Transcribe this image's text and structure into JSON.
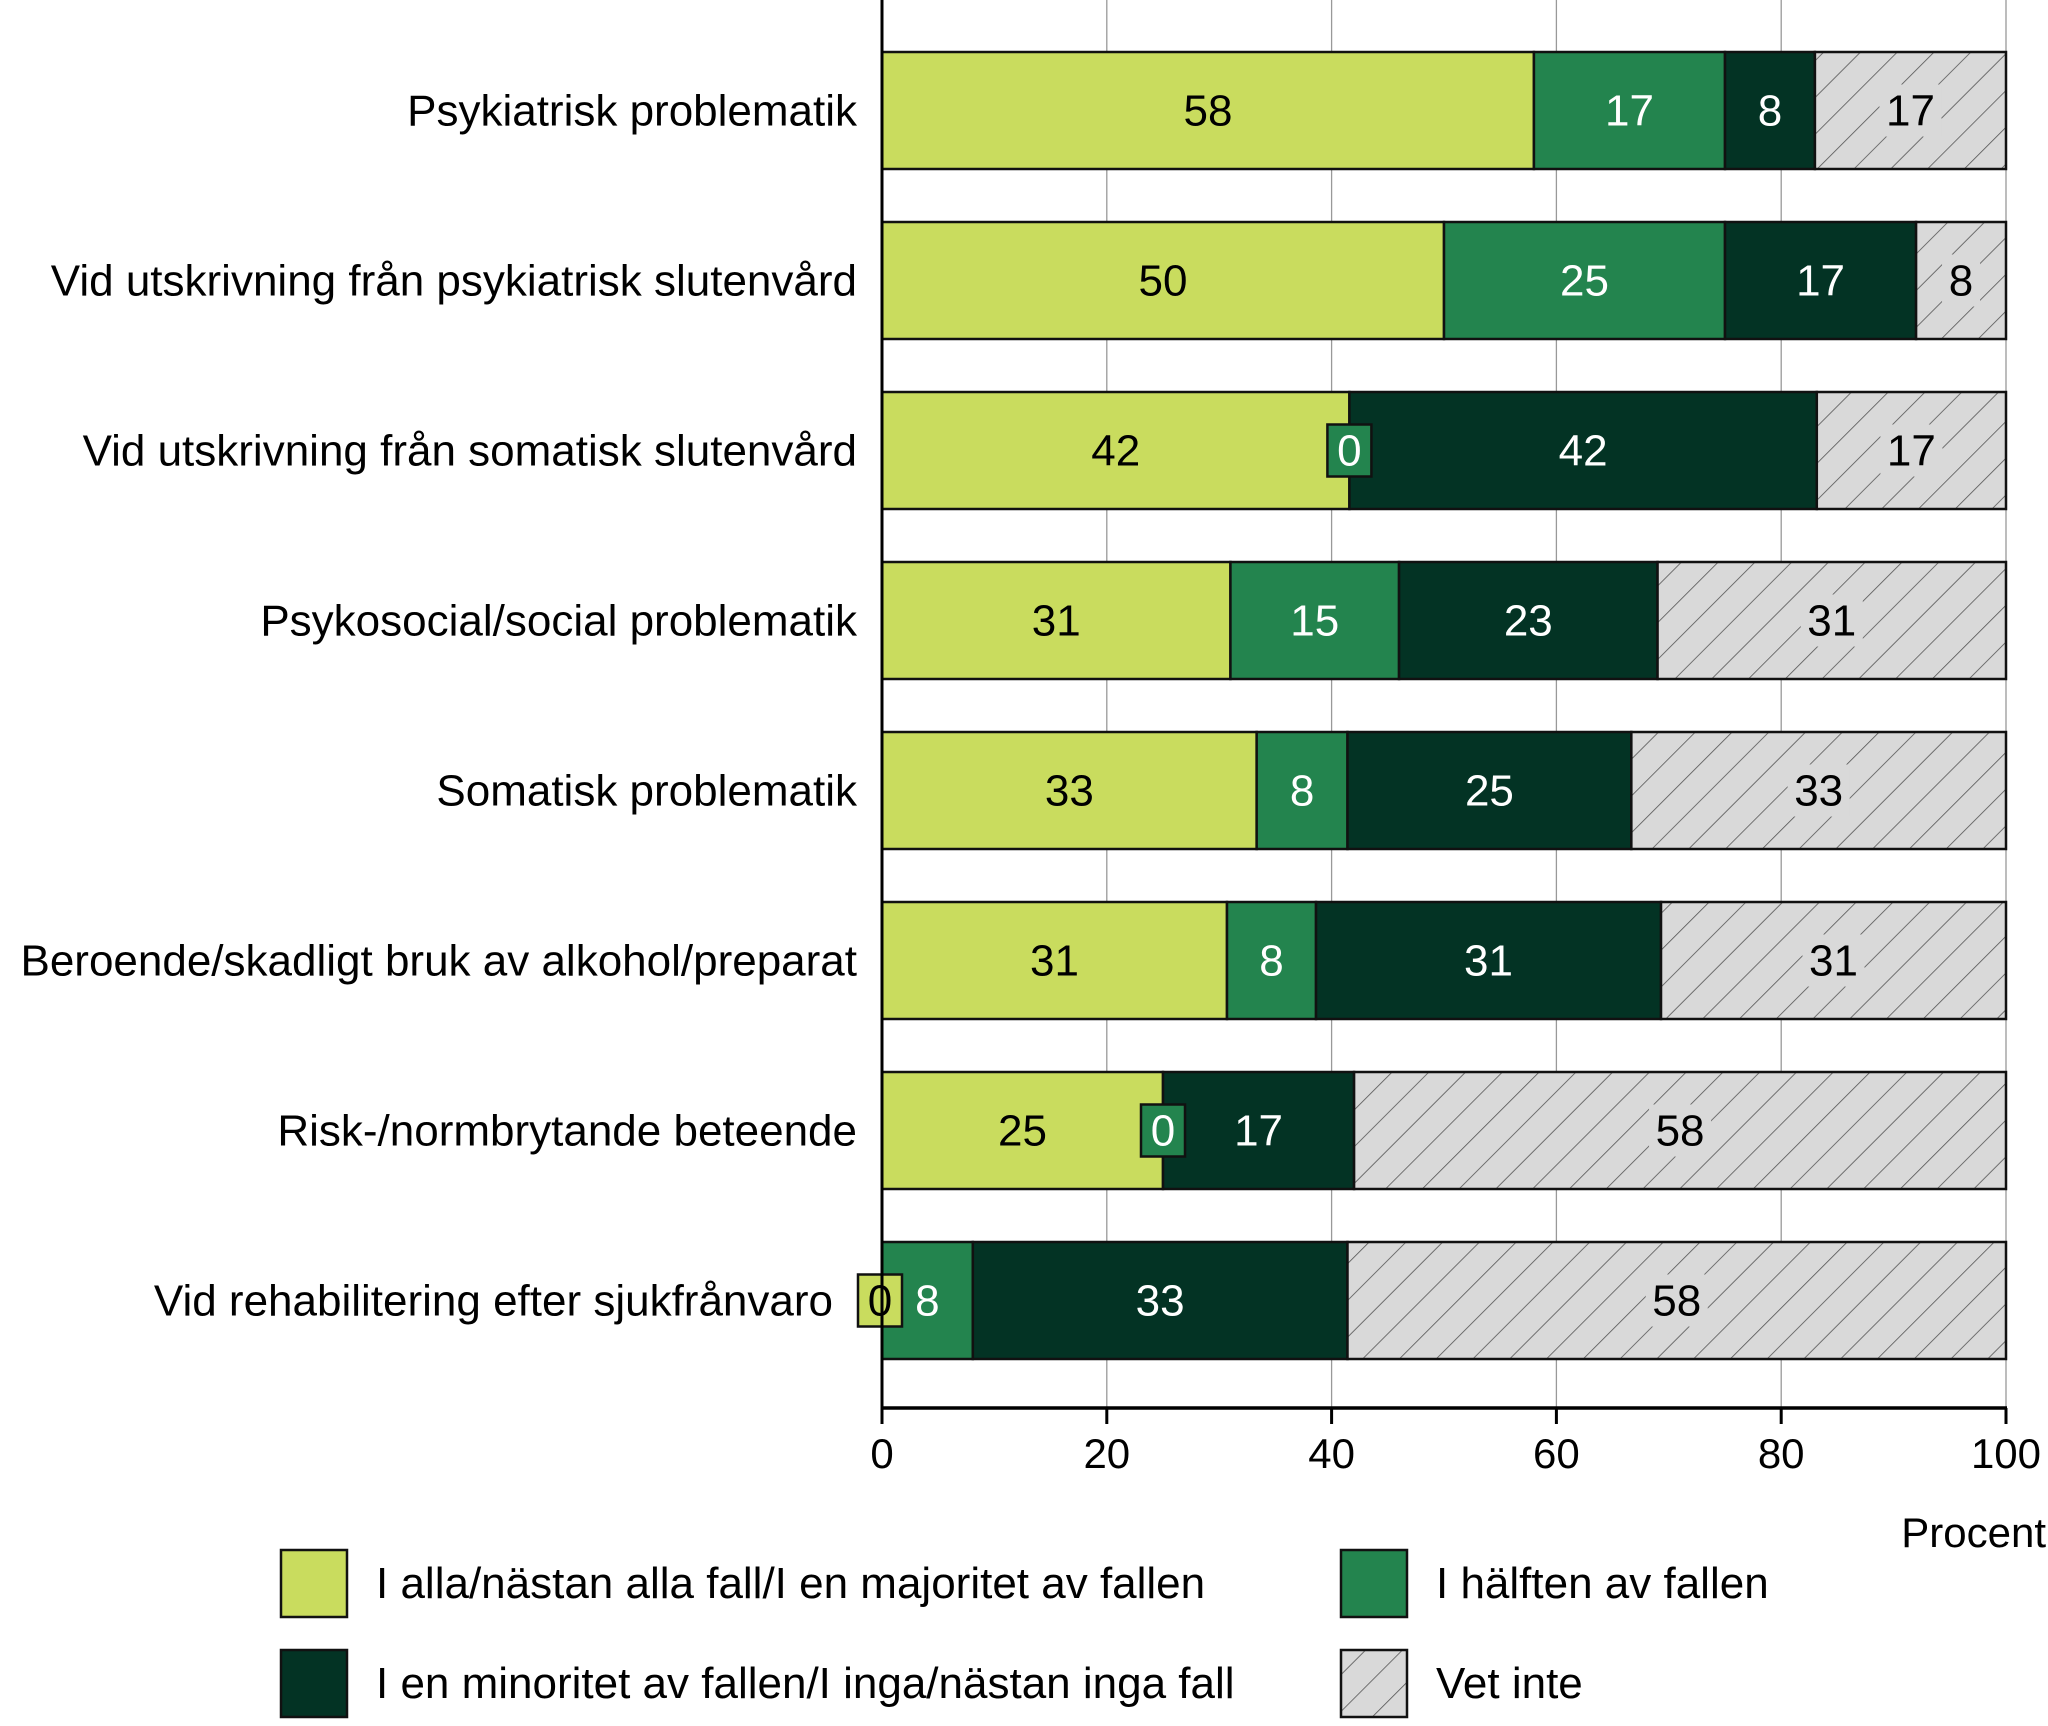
{
  "chart_data": {
    "type": "bar",
    "orientation": "horizontal",
    "stacked": true,
    "categories": [
      "Psykiatrisk problematik",
      "Vid utskrivning från psykiatrisk slutenvård",
      "Vid utskrivning från somatisk slutenvård",
      "Psykosocial/social problematik",
      "Somatisk problematik",
      "Beroende/skadligt bruk av alkohol/preparat",
      "Risk-/normbrytande beteende",
      "Vid rehabilitering efter sjukfrånvaro"
    ],
    "series": [
      {
        "name": "I alla/nästan alla fall/I en majoritet av fallen",
        "color": "#c9dc5e",
        "values": [
          58,
          50,
          42,
          31,
          33,
          31,
          25,
          0
        ]
      },
      {
        "name": "I hälften av fallen",
        "color": "#23844e",
        "values": [
          17,
          25,
          0,
          15,
          8,
          8,
          0,
          8
        ]
      },
      {
        "name": "I en minoritet av fallen/I inga/nästan inga fall",
        "color": "#033324",
        "values": [
          8,
          17,
          42,
          23,
          25,
          31,
          17,
          33
        ]
      },
      {
        "name": "Vet inte",
        "color": "#d9d9d9",
        "pattern": "diagonal-hatch",
        "values": [
          17,
          8,
          17,
          31,
          33,
          31,
          58,
          58
        ]
      }
    ],
    "xlabel": "Procent",
    "xlim": [
      0,
      100
    ],
    "xticks": [
      "0",
      "20",
      "40",
      "60",
      "80",
      "100"
    ],
    "grid": "vertical",
    "legend_position": "bottom"
  }
}
